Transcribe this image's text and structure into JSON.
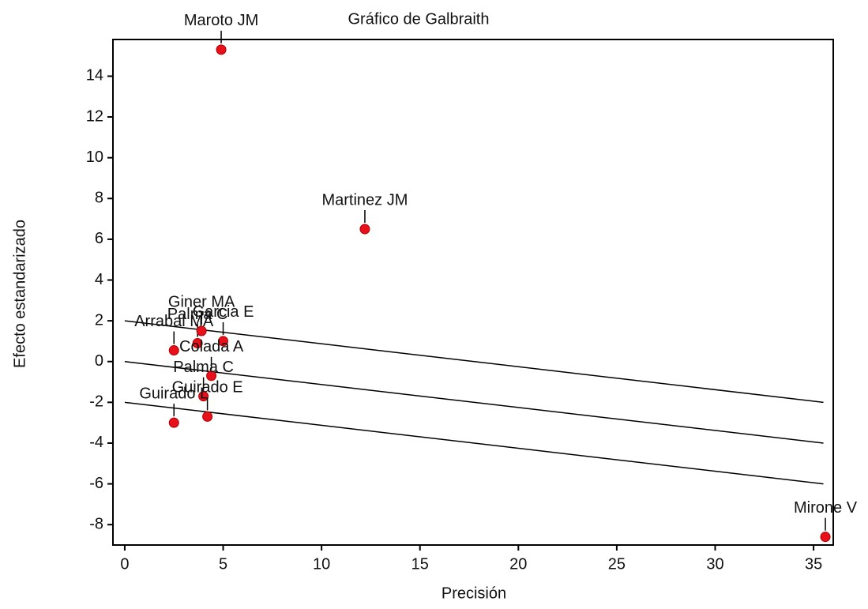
{
  "chart_data": {
    "type": "scatter",
    "title": "Gráfico de Galbraith",
    "x_label": "Precisión",
    "y_label": "Efecto estandarizado",
    "color": "#e8101a",
    "x": [
      4.9,
      12.2,
      35.6,
      2.5,
      3.7,
      3.9,
      5.0,
      4.4,
      4.0,
      4.2,
      2.5
    ],
    "values": [
      15.3,
      6.5,
      -8.6,
      0.55,
      0.9,
      1.5,
      1.0,
      -0.7,
      -1.7,
      -2.7,
      -3.0
    ],
    "labels": [
      "Maroto JM",
      "Martinez JM",
      "Mirone V",
      "Arrabal MA",
      "Palma C",
      "Giner MA",
      "Garcia E",
      "Colada A",
      "Palma C",
      "Guirado E",
      "Guirado L"
    ],
    "reference_lines": [
      {
        "x": [
          0,
          35.5
        ],
        "y": [
          2,
          -2
        ]
      },
      {
        "x": [
          0,
          35.5
        ],
        "y": [
          0,
          -4
        ]
      },
      {
        "x": [
          0,
          35.5
        ],
        "y": [
          -2,
          -6
        ]
      }
    ],
    "xlim": [
      -0.6,
      36
    ],
    "ylim": [
      -9,
      15.8
    ],
    "xticks": [
      0,
      5,
      10,
      15,
      20,
      25,
      30,
      35
    ],
    "yticks": [
      -8,
      -6,
      -4,
      -2,
      0,
      2,
      4,
      6,
      8,
      10,
      12,
      14
    ]
  }
}
